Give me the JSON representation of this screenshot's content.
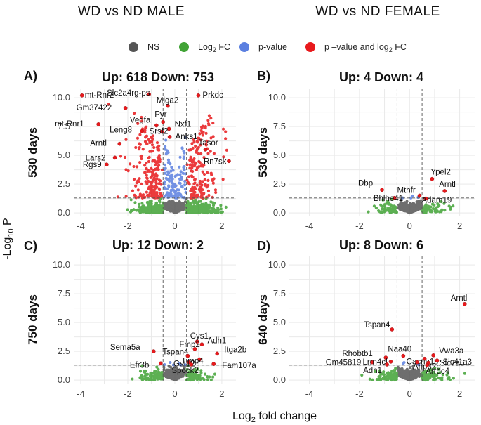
{
  "column_headers": [
    "WD vs ND MALE",
    "WD vs ND FEMALE"
  ],
  "legend": {
    "items": [
      {
        "label": "NS",
        "color": "#555555"
      },
      {
        "label": "Log",
        "sub": "2",
        "suffix": " FC",
        "color": "#41a336"
      },
      {
        "label": "p-value",
        "color": "#5b7fe0"
      },
      {
        "label": "p –value and log",
        "sub": "2",
        "suffix": " FC",
        "color": "#e8191c"
      }
    ]
  },
  "axis_titles": {
    "x": {
      "pre": "Log",
      "sub": "2",
      "post": " fold change"
    },
    "y": {
      "pre": "-Log",
      "sub": "10",
      "post": " P"
    }
  },
  "chart_data": [
    {
      "type": "scatter",
      "panel": "A)",
      "title": "Up: 618 Down: 753",
      "row_label": "530 days",
      "xlim": [
        -4.3,
        2.6
      ],
      "ylim": [
        -0.3,
        10.8
      ],
      "xticks": [
        -4,
        -2,
        0,
        2
      ],
      "yticks": [
        "0.0",
        "2.5",
        "5.0",
        "7.5",
        "10.0"
      ],
      "fc_threshold": 0.5,
      "p_threshold": 1.3,
      "density": {
        "ns": 320,
        "fc": 460,
        "p": 120,
        "sig_up": 170,
        "sig_down": 210
      },
      "labeled_points": [
        {
          "gene": "mt-Rnr2",
          "x": -3.95,
          "y": 10.2
        },
        {
          "gene": "Slc2a4rg-ps",
          "x": -1.1,
          "y": 10.3
        },
        {
          "gene": "Prkdc",
          "x": 1.0,
          "y": 10.2
        },
        {
          "gene": "Miga2",
          "x": -0.3,
          "y": 9.3
        },
        {
          "gene": "Gm37422",
          "x": -2.1,
          "y": 9.1
        },
        {
          "gene": "mt-Rnr1",
          "x": -3.25,
          "y": 7.7
        },
        {
          "gene": "Pyr",
          "x": -0.5,
          "y": 7.9
        },
        {
          "gene": "Vegfa",
          "x": -0.78,
          "y": 7.6
        },
        {
          "gene": "Nxf1",
          "x": -0.25,
          "y": 7.3
        },
        {
          "gene": "Leng8",
          "x": -1.4,
          "y": 7.1
        },
        {
          "gene": "Srsf2",
          "x": -0.55,
          "y": 7.05
        },
        {
          "gene": "Anks1",
          "x": -0.22,
          "y": 6.6
        },
        {
          "gene": "Arntl",
          "x": -2.35,
          "y": 6.0
        },
        {
          "gene": "Tasor",
          "x": 1.3,
          "y": 5.5
        },
        {
          "gene": "Lars2",
          "x": -2.55,
          "y": 4.8
        },
        {
          "gene": "Rn7sk",
          "x": 2.3,
          "y": 4.5
        },
        {
          "gene": "Rgs9",
          "x": -2.9,
          "y": 4.2
        }
      ]
    },
    {
      "type": "scatter",
      "panel": "B)",
      "title": "Up: 4 Down: 4",
      "row_label": "530 days",
      "xlim": [
        -4.8,
        2.6
      ],
      "ylim": [
        -0.3,
        10.8
      ],
      "xticks": [
        -4,
        -2,
        0,
        2
      ],
      "yticks": [
        "0.0",
        "2.5",
        "5.0",
        "7.5",
        "10.0"
      ],
      "fc_threshold": 0.5,
      "p_threshold": 1.3,
      "density": {
        "ns": 300,
        "fc": 110,
        "p": 4,
        "sig_up": 0,
        "sig_down": 0
      },
      "labeled_points": [
        {
          "gene": "Ypel2",
          "x": 0.9,
          "y": 2.95
        },
        {
          "gene": "Dbp",
          "x": -1.1,
          "y": 2.0
        },
        {
          "gene": "Arntl",
          "x": 1.4,
          "y": 1.9
        },
        {
          "gene": "Mthfr",
          "x": 0.4,
          "y": 1.5
        },
        {
          "gene": "Bhlhe41",
          "x": -0.6,
          "y": 1.3
        },
        {
          "gene": "Adam19",
          "x": 0.65,
          "y": 1.25
        }
      ]
    },
    {
      "type": "scatter",
      "panel": "C)",
      "title": "Up: 12 Down: 2",
      "row_label": "750 days",
      "xlim": [
        -4.3,
        2.6
      ],
      "ylim": [
        -0.3,
        10.8
      ],
      "xticks": [
        -4,
        -2,
        0,
        2
      ],
      "yticks": [
        "0.0",
        "2.5",
        "5.0",
        "7.5",
        "10.0"
      ],
      "fc_threshold": 0.5,
      "p_threshold": 1.3,
      "density": {
        "ns": 280,
        "fc": 170,
        "p": 6,
        "sig_up": 0,
        "sig_down": 0
      },
      "labeled_points": [
        {
          "gene": "Cys1",
          "x": 0.95,
          "y": 3.35
        },
        {
          "gene": "Adh1",
          "x": 1.15,
          "y": 3.1
        },
        {
          "gene": "Fmp2",
          "x": 0.85,
          "y": 2.7
        },
        {
          "gene": "Sema5a",
          "x": -0.9,
          "y": 2.5
        },
        {
          "gene": "Itga2b",
          "x": 1.8,
          "y": 2.3
        },
        {
          "gene": "Tspan4",
          "x": 0.55,
          "y": 2.1
        },
        {
          "gene": "Timp4",
          "x": 1.05,
          "y": 1.8
        },
        {
          "gene": "Gst12",
          "x": 0.6,
          "y": 1.55
        },
        {
          "gene": "Efr3b",
          "x": -0.6,
          "y": 1.45
        },
        {
          "gene": "Fam107a",
          "x": 1.65,
          "y": 1.4
        },
        {
          "gene": "Spock2",
          "x": 0.7,
          "y": 1.35
        }
      ]
    },
    {
      "type": "scatter",
      "panel": "D)",
      "title": "Up: 8 Down: 6",
      "row_label": "640 days",
      "xlim": [
        -4.8,
        2.6
      ],
      "ylim": [
        -0.3,
        10.8
      ],
      "xticks": [
        -4,
        -2,
        0,
        2
      ],
      "yticks": [
        "0.0",
        "2.5",
        "5.0",
        "7.5",
        "10.0"
      ],
      "fc_threshold": 0.5,
      "p_threshold": 1.3,
      "density": {
        "ns": 300,
        "fc": 150,
        "p": 5,
        "sig_up": 0,
        "sig_down": 0
      },
      "labeled_points": [
        {
          "gene": "Arntl",
          "x": 2.2,
          "y": 6.6
        },
        {
          "gene": "Tspan4",
          "x": -0.7,
          "y": 4.4
        },
        {
          "gene": "Naa40",
          "x": -0.25,
          "y": 2.1
        },
        {
          "gene": "Vwa3a",
          "x": 0.95,
          "y": 2.15
        },
        {
          "gene": "Rhobtb1",
          "x": -0.95,
          "y": 1.95
        },
        {
          "gene": "Cacna1s",
          "x": 0.6,
          "y": 1.85
        },
        {
          "gene": "Slc41a3",
          "x": 1.1,
          "y": 1.7
        },
        {
          "gene": "Gm45819",
          "x": -1.5,
          "y": 1.55
        },
        {
          "gene": "Lrrn4cl",
          "x": -0.75,
          "y": 1.6
        },
        {
          "gene": "Anp32b",
          "x": 0.3,
          "y": 1.55
        },
        {
          "gene": "Slc7a6",
          "x": 0.75,
          "y": 1.5
        },
        {
          "gene": "Adh1",
          "x": -0.9,
          "y": 1.35
        },
        {
          "gene": "Arrdc4",
          "x": 0.7,
          "y": 1.3
        }
      ]
    }
  ]
}
